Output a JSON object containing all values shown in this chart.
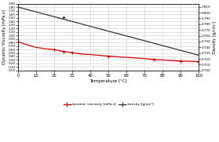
{
  "temp_viscosity_markers": [
    0,
    20,
    25,
    30,
    50,
    75,
    90,
    100
  ],
  "viscosity_markers": [
    0.82,
    0.594,
    0.545,
    0.51,
    0.41,
    0.315,
    0.27,
    0.252
  ],
  "temp_density_markers": [
    0,
    25
  ],
  "density_markers": [
    0.8095,
    0.7914
  ],
  "temp_viscosity_line": [
    0,
    5,
    10,
    15,
    20,
    25,
    30,
    35,
    40,
    45,
    50,
    55,
    60,
    65,
    70,
    75,
    80,
    85,
    90,
    95,
    100
  ],
  "viscosity_line": [
    0.82,
    0.735,
    0.66,
    0.62,
    0.594,
    0.545,
    0.51,
    0.472,
    0.455,
    0.432,
    0.41,
    0.392,
    0.375,
    0.358,
    0.34,
    0.315,
    0.3,
    0.284,
    0.27,
    0.26,
    0.252
  ],
  "temp_density_line": [
    0,
    100
  ],
  "density_line": [
    0.8095,
    0.7264
  ],
  "viscosity_color": "#cc0000",
  "density_color": "#333333",
  "xlabel": "Temperature [°C]",
  "ylabel_left": "Dynamic Viscosity [mPa.s]",
  "ylabel_right": "Density [g/cm³]",
  "legend_viscosity": "dynamic viscosity [mPa.s]",
  "legend_density": "density [g/cm³]",
  "xlim": [
    0,
    100
  ],
  "ylim_left": [
    0.0,
    1.9
  ],
  "ylim_right": [
    0.7,
    0.815
  ],
  "yticks_left": [
    0.0,
    0.1,
    0.2,
    0.3,
    0.4,
    0.5,
    0.6,
    0.7,
    0.8,
    0.9,
    1.0,
    1.1,
    1.2,
    1.3,
    1.4,
    1.5,
    1.6,
    1.7,
    1.8,
    1.9
  ],
  "ytick_labels_left": [
    "0.00",
    "0.10",
    "0.20",
    "0.30",
    "0.40",
    "0.50",
    "0.60",
    "0.70",
    "0.80",
    "0.90",
    "1.00",
    "1.10",
    "1.20",
    "1.30",
    "1.40",
    "1.50",
    "1.60",
    "1.70",
    "1.80",
    "1.90"
  ],
  "yticks_right": [
    0.7,
    0.71,
    0.72,
    0.73,
    0.74,
    0.75,
    0.76,
    0.77,
    0.78,
    0.79,
    0.8,
    0.81
  ],
  "ytick_labels_right": [
    "0.700",
    "0.710",
    "0.720",
    "0.730",
    "0.740",
    "0.750",
    "0.760",
    "0.770",
    "0.780",
    "0.790",
    "0.800",
    "0.810"
  ],
  "xticks": [
    0,
    10,
    20,
    30,
    40,
    50,
    60,
    70,
    80,
    90,
    100
  ],
  "bg_color": "#ffffff",
  "grid_color": "#cccccc",
  "figsize": [
    2.79,
    1.81
  ],
  "dpi": 100
}
